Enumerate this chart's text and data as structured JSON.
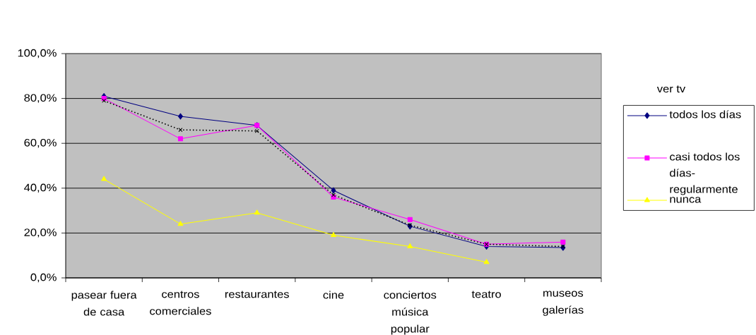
{
  "chart_data": {
    "type": "line",
    "categories": [
      "pasear fuera de casa",
      "centros comerciales",
      "restaurantes",
      "cine",
      "conciertos música popular",
      "teatro",
      "museos galerías"
    ],
    "legend_title": "ver tv",
    "series": [
      {
        "name": "todos los días",
        "color": "#000080",
        "marker": "diamond",
        "values": [
          81,
          72,
          68,
          39,
          23,
          14,
          13.5
        ]
      },
      {
        "name": "casi todos los días-regularmente",
        "color": "#ff00ff",
        "marker": "square",
        "values": [
          80,
          62,
          68,
          36,
          26,
          15,
          16
        ]
      },
      {
        "name": "nunca",
        "color": "#ffff00",
        "marker": "triangle",
        "values": [
          44,
          24,
          29,
          19,
          14,
          7,
          null
        ]
      },
      {
        "color": "#000000",
        "marker": "cross",
        "line_style": "dotted",
        "values": [
          79,
          66,
          65.5,
          37,
          23.5,
          15,
          14
        ]
      }
    ],
    "ylim": [
      0,
      100
    ],
    "yticks": [
      {
        "value": 0,
        "label": "0,0%"
      },
      {
        "value": 20,
        "label": "20,0%"
      },
      {
        "value": 40,
        "label": "40,0%"
      },
      {
        "value": 60,
        "label": "60,0%"
      },
      {
        "value": 80,
        "label": "80,0%"
      },
      {
        "value": 100,
        "label": "100,0%"
      }
    ],
    "grid": "y",
    "legend": "right"
  }
}
